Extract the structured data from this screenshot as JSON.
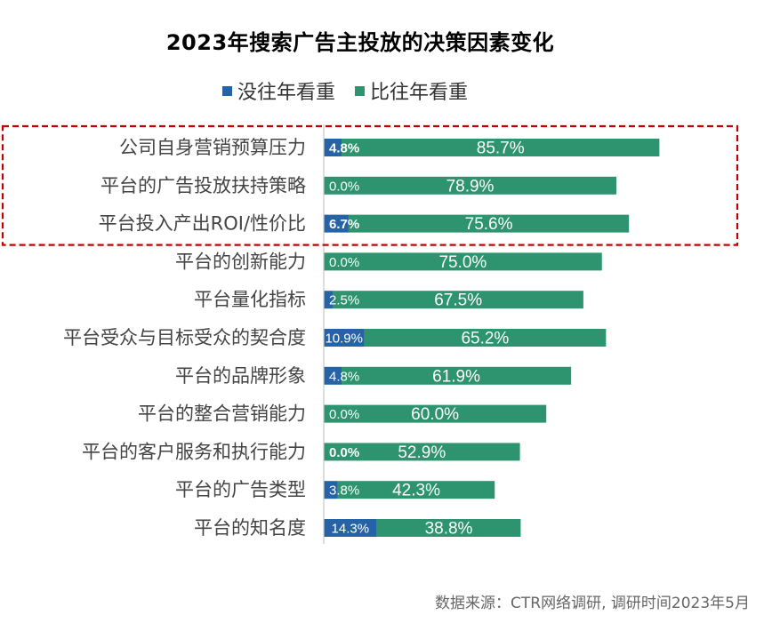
{
  "chart_data": {
    "type": "bar",
    "orientation": "horizontal",
    "stacked": true,
    "title": "2023年搜索广告主投放的决策因素变化",
    "xlim": [
      0,
      100
    ],
    "legend_position": "top",
    "categories": [
      "公司自身营销预算压力",
      "平台的广告投放扶持策略",
      "平台投入产出ROI/性价比",
      "平台的创新能力",
      "平台量化指标",
      "平台受众与目标受众的契合度",
      "平台的品牌形象",
      "平台的整合营销能力",
      "平台的客户服务和执行能力",
      "平台的广告类型",
      "平台的知名度"
    ],
    "series": [
      {
        "name": "没往年看重",
        "color": "#2563a6",
        "values": [
          4.8,
          0.0,
          6.7,
          0.0,
          2.5,
          10.9,
          4.8,
          0.0,
          0.0,
          3.8,
          14.3
        ],
        "labels": [
          "4.8%",
          "0.0%",
          "6.7%",
          "0.0%",
          "2.5%",
          "10.9%",
          "4.8%",
          "0.0%",
          "0.0%",
          "3.8%",
          "14.3%"
        ]
      },
      {
        "name": "比往年看重",
        "color": "#2e9470",
        "values": [
          85.7,
          78.9,
          75.6,
          75.0,
          67.5,
          65.2,
          61.9,
          60.0,
          52.9,
          42.3,
          38.8
        ],
        "labels": [
          "85.7%",
          "78.9%",
          "75.6%",
          "75.0%",
          "67.5%",
          "65.2%",
          "61.9%",
          "60.0%",
          "52.9%",
          "42.3%",
          "38.8%"
        ]
      }
    ],
    "bold_first_series_labels": [
      0,
      2,
      8
    ],
    "highlight_box_rows": [
      0,
      2
    ],
    "highlight_color": "#c00000"
  },
  "source_note": "数据来源：CTR网络调研, 调研时间2023年5月"
}
